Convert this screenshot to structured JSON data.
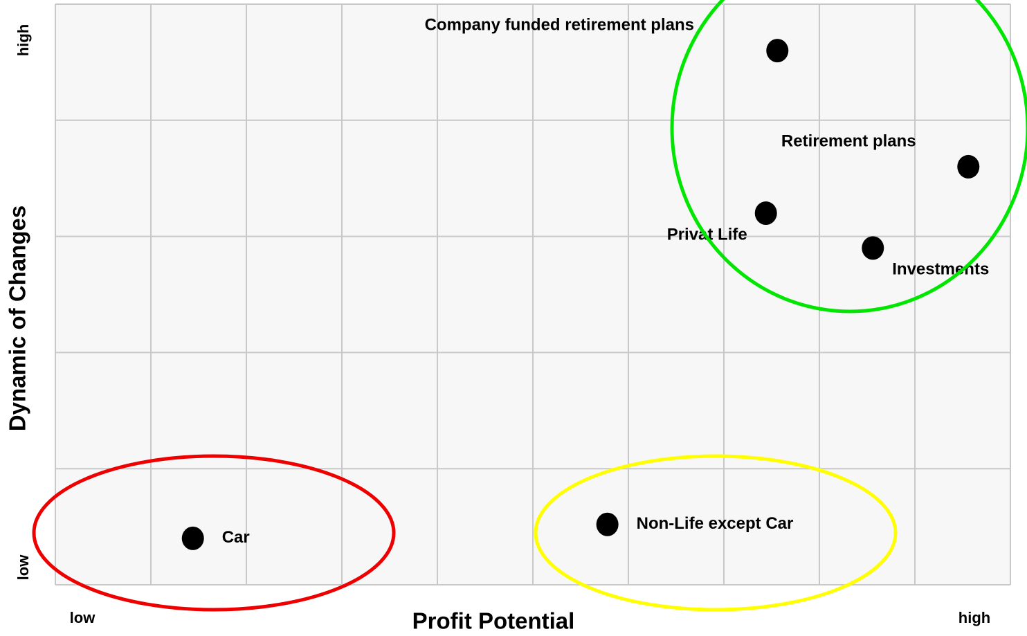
{
  "chart_data": {
    "type": "scatter",
    "x_axis_label": "Profit Potential",
    "y_axis_label": "Dynamic of Changes",
    "x_range_labels": [
      "low",
      "high"
    ],
    "y_range_labels": [
      "low",
      "high"
    ],
    "xlim": [
      0,
      10
    ],
    "ylim": [
      0,
      5
    ],
    "xgrid": [
      0,
      1,
      2,
      3,
      4,
      5,
      6,
      7,
      8,
      9,
      10
    ],
    "ygrid": [
      0,
      1,
      2,
      3,
      4,
      5
    ],
    "grid": true,
    "color": "#000000",
    "labels": [
      "Company funded retirement plans",
      "Retirement plans",
      "Privat Life",
      "Investments",
      "Car",
      "Non-Life except Car"
    ],
    "x": [
      7.56,
      9.56,
      7.44,
      8.56,
      1.44,
      5.78
    ],
    "y": [
      4.6,
      3.6,
      3.2,
      2.9,
      0.4,
      0.52
    ]
  }
}
